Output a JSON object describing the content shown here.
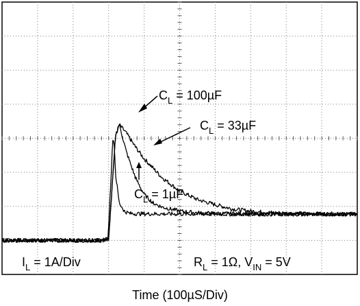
{
  "chart_data": {
    "type": "line",
    "xlabel": "Time (100µS/Div)",
    "x_unit": "µs",
    "y_unit": "A",
    "xlim": [
      0,
      1000
    ],
    "ylim": [
      -1,
      7
    ],
    "grid": true,
    "grid_divisions": {
      "x": 10,
      "y": 8
    },
    "channel_marker": "1",
    "scale_annotation": {
      "main": "I",
      "sub": "L",
      "rest": " = 1A/Div"
    },
    "conditions_annotation": {
      "r_main": "R",
      "r_sub": "L",
      "r_rest": " = 1Ω, V",
      "v_sub": "IN",
      "v_rest": " = 5V"
    },
    "series": [
      {
        "name_main": "C",
        "name_sub": "L",
        "name_rest": " = 100µF",
        "x": [
          0,
          280,
          300,
          310,
          320,
          330,
          350,
          375,
          400,
          450,
          500,
          550,
          600,
          650,
          700,
          750,
          800,
          900,
          1000
        ],
        "y": [
          0,
          0,
          0.05,
          1.6,
          3.1,
          3.4,
          3.15,
          2.75,
          2.4,
          1.85,
          1.45,
          1.2,
          1.05,
          0.92,
          0.86,
          0.82,
          0.8,
          0.78,
          0.77
        ]
      },
      {
        "name_main": "C",
        "name_sub": "L",
        "name_rest": " = 33µF",
        "x": [
          0,
          280,
          300,
          310,
          320,
          330,
          350,
          375,
          400,
          425,
          450,
          500,
          550,
          600,
          700,
          800,
          1000
        ],
        "y": [
          0,
          0,
          0.05,
          1.6,
          3.1,
          3.4,
          2.6,
          1.85,
          1.35,
          1.1,
          0.98,
          0.86,
          0.81,
          0.79,
          0.78,
          0.77,
          0.77
        ]
      },
      {
        "name_main": "C",
        "name_sub": "L",
        "name_rest": " = 1µF",
        "x": [
          0,
          285,
          298,
          305,
          312,
          316,
          320,
          330,
          345,
          360,
          400,
          600,
          800,
          1000
        ],
        "y": [
          0,
          0,
          0.05,
          1.5,
          3.0,
          2.8,
          1.9,
          1.1,
          0.85,
          0.79,
          0.78,
          0.77,
          0.77,
          0.77
        ]
      }
    ]
  }
}
